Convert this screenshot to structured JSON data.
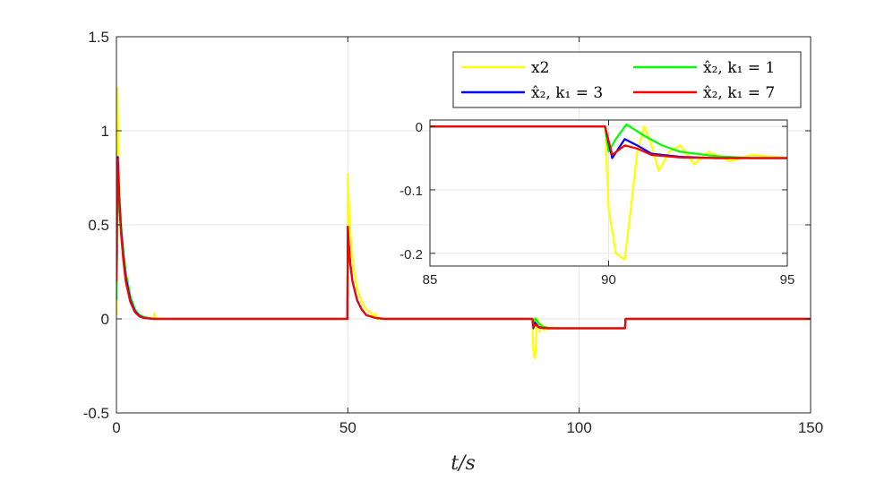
{
  "chart_data": {
    "type": "line",
    "title": "",
    "xlabel": "t/s",
    "ylabel": "",
    "xlim": [
      0,
      150
    ],
    "ylim": [
      -0.5,
      1.5
    ],
    "xticks": [
      0,
      50,
      100,
      150
    ],
    "yticks": [
      -0.5,
      0,
      0.5,
      1,
      1.5
    ],
    "xtick_labels": [
      "0",
      "50",
      "100",
      "150"
    ],
    "ytick_labels": [
      "-0.5",
      "0",
      "0.5",
      "1",
      "1.5"
    ],
    "grid": true,
    "legend": {
      "placement": "top-right",
      "columns": 2,
      "entries": [
        "x2",
        "x̂₂, k₁ = 1",
        "x̂₂, k₁ = 3",
        "x̂₂, k₁ = 7"
      ]
    },
    "series": [
      {
        "name": "x2",
        "color": "#ffff00",
        "x": [
          0,
          0.2,
          0.4,
          0.6,
          0.8,
          1.0,
          1.4,
          2,
          2.5,
          3,
          4,
          5,
          6,
          7,
          8,
          8.2,
          8.4,
          10,
          20,
          49.9,
          50.0,
          50.2,
          50.4,
          50.8,
          51.5,
          52,
          53,
          54,
          55,
          55.8,
          56,
          56.2,
          58,
          70,
          89.9,
          90.0,
          90.2,
          90.45,
          90.6,
          90.8,
          91.0,
          91.2,
          91.4,
          91.7,
          92.0,
          92.4,
          92.8,
          93.4,
          94,
          95,
          100,
          109.9,
          110,
          150
        ],
        "values": [
          0.02,
          1.23,
          0.95,
          0.7,
          0.55,
          0.45,
          0.32,
          0.2,
          0.14,
          0.09,
          0.04,
          0.02,
          0.01,
          0.005,
          0.0,
          0.03,
          0.005,
          0.0,
          0.0,
          0.0,
          0.77,
          0.62,
          0.52,
          0.36,
          0.23,
          0.16,
          0.09,
          0.05,
          0.03,
          0.01,
          0.03,
          0.0,
          0.0,
          0.0,
          0.0,
          -0.13,
          -0.2,
          -0.21,
          -0.14,
          -0.04,
          0.0,
          -0.03,
          -0.07,
          -0.04,
          -0.03,
          -0.06,
          -0.04,
          -0.055,
          -0.045,
          -0.05,
          -0.05,
          -0.05,
          0.0,
          0.0
        ]
      },
      {
        "name": "x̂₂, k₁ = 1",
        "color": "#00ff00",
        "x": [
          0,
          0.15,
          0.35,
          0.5,
          0.7,
          1.0,
          1.5,
          2,
          3,
          4,
          5,
          6,
          8,
          10,
          49.9,
          50.0,
          50.2,
          50.5,
          51,
          52,
          53,
          54,
          56,
          58,
          89.9,
          90.0,
          90.2,
          90.5,
          91.0,
          91.5,
          92.0,
          93,
          94,
          95,
          100,
          109.9,
          110,
          150
        ],
        "values": [
          0.1,
          0.32,
          0.8,
          0.75,
          0.62,
          0.5,
          0.36,
          0.25,
          0.12,
          0.05,
          0.02,
          0.01,
          0.0,
          0.0,
          0.0,
          0.45,
          0.38,
          0.3,
          0.2,
          0.1,
          0.05,
          0.02,
          0.005,
          0.0,
          0.0,
          -0.04,
          -0.02,
          0.003,
          -0.015,
          -0.03,
          -0.04,
          -0.047,
          -0.05,
          -0.05,
          -0.05,
          -0.05,
          0.0,
          0.0
        ]
      },
      {
        "name": "x̂₂, k₁ = 3",
        "color": "#0000ff",
        "x": [
          0,
          0.15,
          0.3,
          0.5,
          0.7,
          1.0,
          1.5,
          2,
          3,
          4,
          5,
          6,
          8,
          10,
          49.9,
          50.0,
          50.2,
          50.5,
          51,
          52,
          53,
          54,
          56,
          58,
          89.9,
          90.1,
          90.45,
          90.8,
          91.2,
          92,
          93,
          95,
          100,
          109.9,
          110,
          150
        ],
        "values": [
          0.3,
          0.7,
          0.86,
          0.72,
          0.6,
          0.47,
          0.33,
          0.22,
          0.1,
          0.04,
          0.015,
          0.005,
          0.0,
          0.0,
          0.0,
          0.49,
          0.4,
          0.3,
          0.2,
          0.1,
          0.05,
          0.02,
          0.005,
          0.0,
          0.0,
          -0.05,
          -0.02,
          -0.03,
          -0.043,
          -0.048,
          -0.05,
          -0.05,
          -0.05,
          -0.05,
          0.0,
          0.0
        ]
      },
      {
        "name": "x̂₂, k₁ = 7",
        "color": "#ff0000",
        "x": [
          0,
          0.1,
          0.25,
          0.5,
          0.7,
          1.0,
          1.5,
          2,
          3,
          4,
          5,
          6,
          8,
          10,
          49.9,
          50.0,
          50.2,
          50.5,
          51,
          52,
          53,
          54,
          56,
          58,
          89.9,
          90.1,
          90.45,
          90.8,
          91.2,
          92,
          93,
          95,
          100,
          109.9,
          110,
          150
        ],
        "values": [
          0.2,
          0.5,
          0.85,
          0.7,
          0.58,
          0.45,
          0.31,
          0.2,
          0.09,
          0.035,
          0.012,
          0.004,
          0.0,
          0.0,
          0.0,
          0.49,
          0.4,
          0.3,
          0.2,
          0.1,
          0.05,
          0.02,
          0.005,
          0.0,
          0.0,
          -0.045,
          -0.03,
          -0.035,
          -0.045,
          -0.049,
          -0.05,
          -0.05,
          -0.05,
          -0.05,
          0.0,
          0.0
        ]
      }
    ],
    "inset": {
      "xlim": [
        85,
        95
      ],
      "ylim": [
        -0.22,
        0.01
      ],
      "xticks": [
        85,
        90,
        95
      ],
      "yticks": [
        0,
        -0.1,
        -0.2
      ],
      "xtick_labels": [
        "85",
        "90",
        "95"
      ],
      "ytick_labels": [
        "0",
        "-0.1",
        "-0.2"
      ],
      "grid": true
    }
  }
}
